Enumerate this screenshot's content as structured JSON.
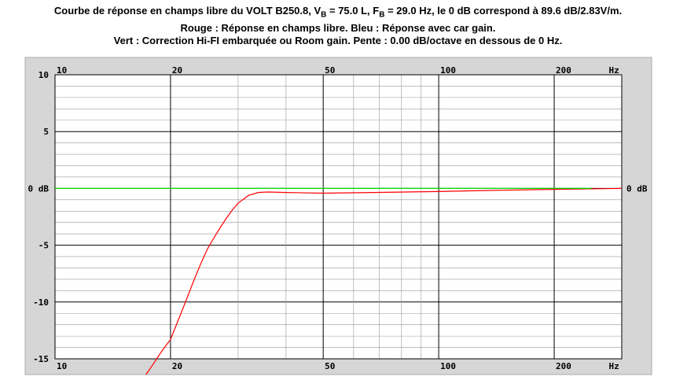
{
  "title": {
    "line1_part1": "Courbe de réponse en champs libre du VOLT B250.8, V",
    "line1_sub1": "B",
    "line1_part2": " = 75.0 L, F",
    "line1_sub2": "B",
    "line1_part3": " = 29.0 Hz, le 0 dB correspond à 89.6 dB/2.83V/m.",
    "line2": "Rouge : Réponse en champs libre. Bleu : Réponse avec car gain.",
    "line3": "Vert : Correction Hi-FI embarquée ou Room gain. Pente : 0.00 dB/octave en dessous de 0 Hz."
  },
  "chart_data": {
    "type": "line",
    "x_scale": "log",
    "xlim": [
      10,
      300
    ],
    "ylim": [
      -15,
      10
    ],
    "grid": true,
    "x_ticks": [
      {
        "value": 10,
        "label": "10"
      },
      {
        "value": 20,
        "label": "20"
      },
      {
        "value": 50,
        "label": "50"
      },
      {
        "value": 100,
        "label": "100"
      },
      {
        "value": 200,
        "label": "200"
      },
      {
        "value": 275,
        "label": "Hz"
      }
    ],
    "y_ticks_left": [
      {
        "value": 10,
        "label": "10"
      },
      {
        "value": 5,
        "label": "5"
      },
      {
        "value": 0,
        "label": "0 dB"
      },
      {
        "value": -5,
        "label": "-5"
      },
      {
        "value": -10,
        "label": "-10"
      },
      {
        "value": -15,
        "label": "-15"
      }
    ],
    "y_ticks_right": [
      {
        "value": 0,
        "label": "0 dB"
      }
    ],
    "series": [
      {
        "name": "Réponse en champs libre",
        "color": "#ff0000",
        "x": [
          17,
          18,
          19,
          20,
          21,
          22,
          23,
          24,
          25,
          26,
          27,
          28,
          29,
          30,
          32,
          34,
          36,
          40,
          50,
          70,
          100,
          150,
          200,
          300
        ],
        "y": [
          -16.7,
          -15.5,
          -14.3,
          -13.3,
          -11.5,
          -9.8,
          -8.1,
          -6.6,
          -5.3,
          -4.3,
          -3.4,
          -2.6,
          -1.9,
          -1.3,
          -0.6,
          -0.35,
          -0.32,
          -0.36,
          -0.42,
          -0.35,
          -0.28,
          -0.15,
          -0.08,
          0.0
        ]
      },
      {
        "name": "Correction Hi-FI embarquée ou Room gain",
        "color": "#00dd00",
        "x": [
          10,
          250
        ],
        "y": [
          0,
          0
        ]
      }
    ]
  }
}
